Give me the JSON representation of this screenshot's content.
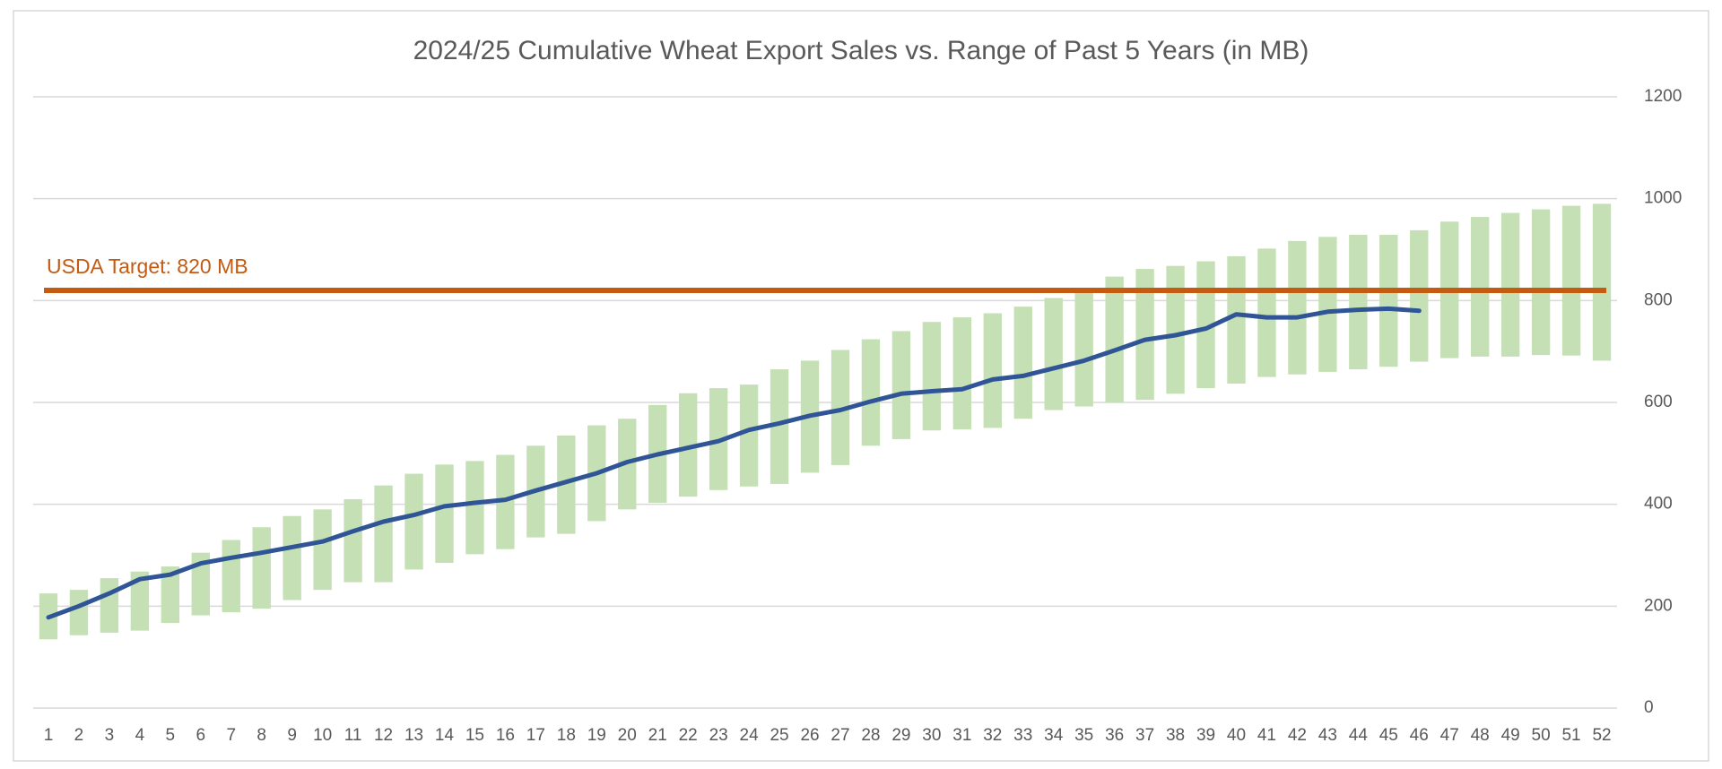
{
  "chart_data": {
    "type": "range-bar-line",
    "title": "2024/25 Cumulative Wheat Export Sales vs. Range of Past 5 Years (in MB)",
    "categories": [
      "1",
      "2",
      "3",
      "4",
      "5",
      "6",
      "7",
      "8",
      "9",
      "10",
      "11",
      "12",
      "13",
      "14",
      "15",
      "16",
      "17",
      "18",
      "19",
      "20",
      "21",
      "22",
      "23",
      "24",
      "25",
      "26",
      "27",
      "28",
      "29",
      "30",
      "31",
      "32",
      "33",
      "34",
      "35",
      "36",
      "37",
      "38",
      "39",
      "40",
      "41",
      "42",
      "43",
      "44",
      "45",
      "46",
      "47",
      "48",
      "49",
      "50",
      "51",
      "52"
    ],
    "range": {
      "color": "#c5e0b4",
      "low": [
        135,
        143,
        148,
        152,
        167,
        182,
        188,
        195,
        212,
        232,
        247,
        247,
        272,
        285,
        302,
        312,
        335,
        342,
        367,
        390,
        403,
        415,
        428,
        435,
        440,
        462,
        477,
        515,
        528,
        545,
        547,
        550,
        568,
        585,
        592,
        600,
        605,
        617,
        628,
        637,
        650,
        655,
        660,
        665,
        670,
        680,
        687,
        690,
        690,
        693,
        692,
        682
      ],
      "high": [
        225,
        232,
        255,
        268,
        278,
        305,
        330,
        355,
        377,
        390,
        410,
        437,
        460,
        478,
        485,
        497,
        515,
        535,
        555,
        568,
        595,
        618,
        628,
        635,
        665,
        682,
        703,
        724,
        740,
        758,
        767,
        775,
        788,
        805,
        820,
        847,
        862,
        868,
        877,
        887,
        902,
        917,
        925,
        929,
        929,
        938,
        955,
        964,
        972,
        979,
        986,
        990
      ]
    },
    "line": {
      "color": "#2f5597",
      "values": [
        178,
        200,
        225,
        253,
        262,
        284,
        295,
        305,
        316,
        327,
        347,
        366,
        379,
        396,
        403,
        409,
        427,
        444,
        461,
        483,
        498,
        511,
        524,
        546,
        559,
        574,
        585,
        602,
        617,
        622,
        626,
        645,
        652,
        667,
        682,
        702,
        723,
        732,
        745,
        773,
        767,
        767,
        778,
        782,
        784,
        780
      ]
    },
    "target": {
      "value": 820,
      "label": "USDA Target: 820 MB",
      "color": "#c55a11"
    },
    "ylim": [
      0,
      1200
    ],
    "yticks": [
      0,
      200,
      400,
      600,
      800,
      1000,
      1200
    ],
    "grid": true,
    "y_axis_side": "right"
  }
}
